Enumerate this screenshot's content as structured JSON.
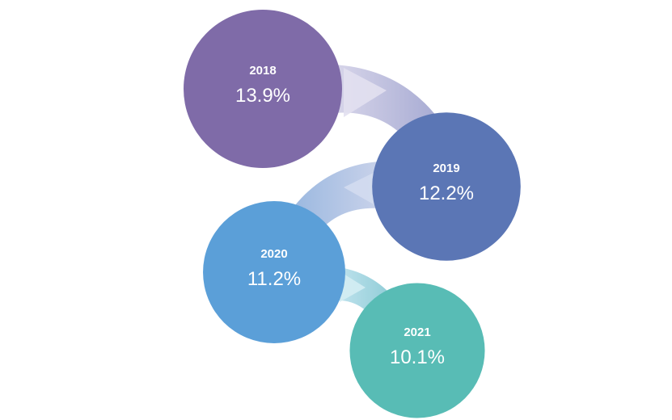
{
  "chart_data": {
    "type": "bubble-flow",
    "title": "",
    "unit": "%",
    "categories": [
      "2018",
      "2019",
      "2020",
      "2021"
    ],
    "values": [
      13.9,
      12.2,
      11.2,
      10.1
    ],
    "labels": [
      "13.9%",
      "12.2%",
      "11.2%",
      "10.1%"
    ],
    "colors": [
      "#7f6ba8",
      "#5b76b5",
      "#5b9fd8",
      "#58bcb5"
    ]
  }
}
